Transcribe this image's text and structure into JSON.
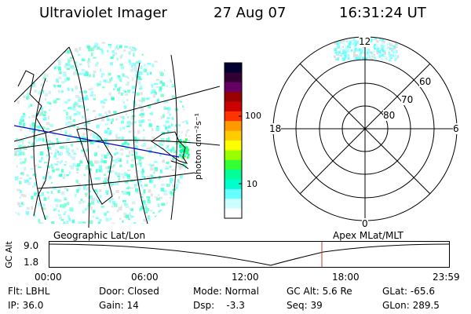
{
  "header": {
    "instrument": "Ultraviolet Imager",
    "date": "27 Aug 07",
    "time": "16:31:24 UT"
  },
  "colorbar": {
    "unit_label": "photon cm⁻²s⁻¹",
    "ticks": [
      "100",
      "10"
    ],
    "colors": [
      "#000033",
      "#330033",
      "#660066",
      "#990000",
      "#cc0000",
      "#ff3300",
      "#ff9900",
      "#ffcc00",
      "#ffff00",
      "#99ff00",
      "#33ff33",
      "#00ff99",
      "#00ffcc",
      "#66ffff",
      "#ccffff",
      "#ffffff"
    ]
  },
  "polar_plot": {
    "mlt_labels": {
      "top": "12",
      "bottom": "0",
      "left": "18",
      "right": "6"
    },
    "lat_labels": [
      "60",
      "70",
      "80"
    ]
  },
  "timeline": {
    "left_label": "Geographic Lat/Lon",
    "right_label": "Apex MLat/MLT",
    "axis_title": "GC Alt",
    "y_ticks": [
      "9.0",
      "1.8"
    ],
    "x_ticks": [
      "00:00",
      "06:00",
      "12:00",
      "18:00",
      "23:59"
    ],
    "marker_color": "#cc3333"
  },
  "status": {
    "flt": "Flt: LBHL",
    "ip": "IP: 36.0",
    "door": "Door: Closed",
    "gain": "Gain: 14",
    "mode": "Mode: Normal",
    "dsp": "Dsp:    -3.3",
    "gc_alt": "GC Alt: 5.6 Re",
    "seq": "Seq: 39",
    "glat": "GLat: -65.6",
    "glon": "GLon: 289.5"
  }
}
